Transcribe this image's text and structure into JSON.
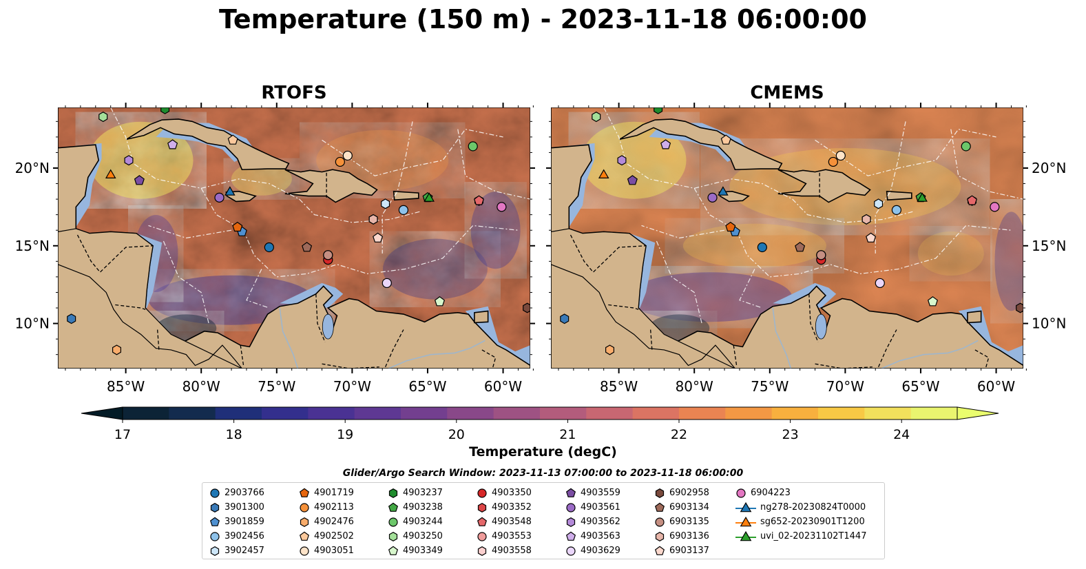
{
  "title": "Temperature (150 m) - 2023-11-18 06:00:00",
  "panels": [
    {
      "title": "RTOFS"
    },
    {
      "title": "CMEMS"
    }
  ],
  "axes": {
    "x_ticks": [
      "85°W",
      "80°W",
      "75°W",
      "70°W",
      "65°W",
      "60°W"
    ],
    "y_ticks": [
      "20°N",
      "15°N",
      "10°N"
    ],
    "lon_range": [
      -89.5,
      -58.2
    ],
    "lat_range": [
      7.1,
      23.9
    ]
  },
  "colorbar": {
    "label": "Temperature (degC)",
    "ticks": [
      "17",
      "18",
      "19",
      "20",
      "21",
      "22",
      "23",
      "24"
    ],
    "min": 17,
    "max": 24.5,
    "step": 0.5,
    "extend": "both",
    "colors": [
      "#0c2336",
      "#132b4e",
      "#1f2f79",
      "#332f8d",
      "#4a3293",
      "#5e3893",
      "#733f8f",
      "#894889",
      "#9e5283",
      "#b35c7c",
      "#c86772",
      "#db7463",
      "#ea8452",
      "#f39844",
      "#f8b03e",
      "#f8c945",
      "#f2e05c",
      "#e9f46f"
    ],
    "over_color": "#eafd6e",
    "under_color": "#031b26"
  },
  "legend": {
    "subtitle": "Glider/Argo Search Window: 2023-11-13 07:00:00 to 2023-11-18 06:00:00",
    "columns": [
      [
        {
          "label": "2903766",
          "marker": "circle",
          "color": "#1f77b4"
        },
        {
          "label": "3901300",
          "marker": "hexagon",
          "color": "#3a7ab8"
        },
        {
          "label": "3901859",
          "marker": "pentagon",
          "color": "#4f90d0"
        },
        {
          "label": "3902456",
          "marker": "circle",
          "color": "#8ec2ea"
        },
        {
          "label": "3902457",
          "marker": "hexagon",
          "color": "#cde6f8"
        }
      ],
      [
        {
          "label": "4901719",
          "marker": "pentagon",
          "color": "#e6660e"
        },
        {
          "label": "4902113",
          "marker": "circle",
          "color": "#f5913a"
        },
        {
          "label": "4902476",
          "marker": "hexagon",
          "color": "#f9ad6c"
        },
        {
          "label": "4902502",
          "marker": "pentagon",
          "color": "#fbc99c"
        },
        {
          "label": "4903051",
          "marker": "circle",
          "color": "#fde3c8"
        }
      ],
      [
        {
          "label": "4903237",
          "marker": "hexagon",
          "color": "#1f8c2e"
        },
        {
          "label": "4903238",
          "marker": "pentagon",
          "color": "#43a845"
        },
        {
          "label": "4903244",
          "marker": "circle",
          "color": "#6cc76a"
        },
        {
          "label": "4903250",
          "marker": "hexagon",
          "color": "#a4e09a"
        },
        {
          "label": "4903349",
          "marker": "pentagon",
          "color": "#d7f6cc"
        }
      ],
      [
        {
          "label": "4903350",
          "marker": "circle",
          "color": "#d62728"
        },
        {
          "label": "4903352",
          "marker": "hexagon",
          "color": "#dc4647"
        },
        {
          "label": "4903548",
          "marker": "pentagon",
          "color": "#e4686a"
        },
        {
          "label": "4903553",
          "marker": "circle",
          "color": "#ef9c9b"
        },
        {
          "label": "4903558",
          "marker": "hexagon",
          "color": "#fad0cf"
        }
      ],
      [
        {
          "label": "4903559",
          "marker": "pentagon",
          "color": "#7b4ea3"
        },
        {
          "label": "4903561",
          "marker": "circle",
          "color": "#9b6bc6"
        },
        {
          "label": "4903562",
          "marker": "hexagon",
          "color": "#b48ad9"
        },
        {
          "label": "4903563",
          "marker": "pentagon",
          "color": "#cfaeea"
        },
        {
          "label": "4903629",
          "marker": "circle",
          "color": "#ead6fa"
        }
      ],
      [
        {
          "label": "6902958",
          "marker": "hexagon",
          "color": "#7a4a3d"
        },
        {
          "label": "6903134",
          "marker": "pentagon",
          "color": "#9e6a5a"
        },
        {
          "label": "6903135",
          "marker": "circle",
          "color": "#c58f82"
        },
        {
          "label": "6903136",
          "marker": "hexagon",
          "color": "#e7b6aa"
        },
        {
          "label": "6903137",
          "marker": "pentagon",
          "color": "#fbd8cd"
        }
      ],
      [
        {
          "label": "6904223",
          "marker": "circle",
          "color": "#e377c2"
        },
        {
          "label": "ng278-20230824T0000",
          "marker": "triangle-line",
          "color": "#1f77b4"
        },
        {
          "label": "sg652-20230901T1200",
          "marker": "triangle-line",
          "color": "#ff7f0e"
        },
        {
          "label": "uvi_02-20231102T1447",
          "marker": "triangle-line",
          "color": "#2ca02c"
        }
      ]
    ]
  },
  "observations": [
    {
      "id": "2903766",
      "lon": -75.5,
      "lat": 14.9
    },
    {
      "id": "3901300",
      "lon": -88.6,
      "lat": 10.3
    },
    {
      "id": "3901859",
      "lon": -77.3,
      "lat": 15.9
    },
    {
      "id": "3902456",
      "lon": -66.6,
      "lat": 17.3
    },
    {
      "id": "3902457",
      "lon": -67.8,
      "lat": 17.7
    },
    {
      "id": "4901719",
      "lon": -77.6,
      "lat": 16.2
    },
    {
      "id": "4902113",
      "lon": -70.8,
      "lat": 20.4
    },
    {
      "id": "4902476",
      "lon": -85.6,
      "lat": 8.3
    },
    {
      "id": "4902502",
      "lon": -77.9,
      "lat": 21.8
    },
    {
      "id": "4903051",
      "lon": -70.3,
      "lat": 20.8
    },
    {
      "id": "4903237",
      "lon": -82.4,
      "lat": 23.8
    },
    {
      "id": "4903238",
      "lon": -65.0,
      "lat": 18.1
    },
    {
      "id": "4903244",
      "lon": -62.0,
      "lat": 21.4
    },
    {
      "id": "4903250",
      "lon": -86.5,
      "lat": 23.3
    },
    {
      "id": "4903349",
      "lon": -64.2,
      "lat": 11.4
    },
    {
      "id": "4903350",
      "lon": -71.6,
      "lat": 14.1
    },
    {
      "id": "4903352",
      "lon": -61.6,
      "lat": 17.9
    },
    {
      "id": "4903548",
      "lon": -61.6,
      "lat": 17.9
    },
    {
      "id": "4903553",
      "lon": -71.6,
      "lat": 14.4
    },
    {
      "id": "4903558",
      "lon": -68.6,
      "lat": 16.7
    },
    {
      "id": "4903559",
      "lon": -84.1,
      "lat": 19.2
    },
    {
      "id": "4903561",
      "lon": -78.8,
      "lat": 18.1
    },
    {
      "id": "4903562",
      "lon": -84.8,
      "lat": 20.5
    },
    {
      "id": "4903563",
      "lon": -81.9,
      "lat": 21.5
    },
    {
      "id": "4903629",
      "lon": -67.7,
      "lat": 12.6
    },
    {
      "id": "6902958",
      "lon": -58.4,
      "lat": 11.0
    },
    {
      "id": "6903134",
      "lon": -73.0,
      "lat": 14.9
    },
    {
      "id": "6903135",
      "lon": -71.6,
      "lat": 14.4
    },
    {
      "id": "6903136",
      "lon": -68.6,
      "lat": 16.7
    },
    {
      "id": "6903137",
      "lon": -68.3,
      "lat": 15.5
    },
    {
      "id": "6904223",
      "lon": -60.1,
      "lat": 17.5
    },
    {
      "id": "ng278-20230824T0000",
      "lon": -78.1,
      "lat": 18.5
    },
    {
      "id": "sg652-20230901T1200",
      "lon": -86.0,
      "lat": 19.6
    },
    {
      "id": "uvi_02-20231102T1447",
      "lon": -64.9,
      "lat": 18.1
    }
  ]
}
